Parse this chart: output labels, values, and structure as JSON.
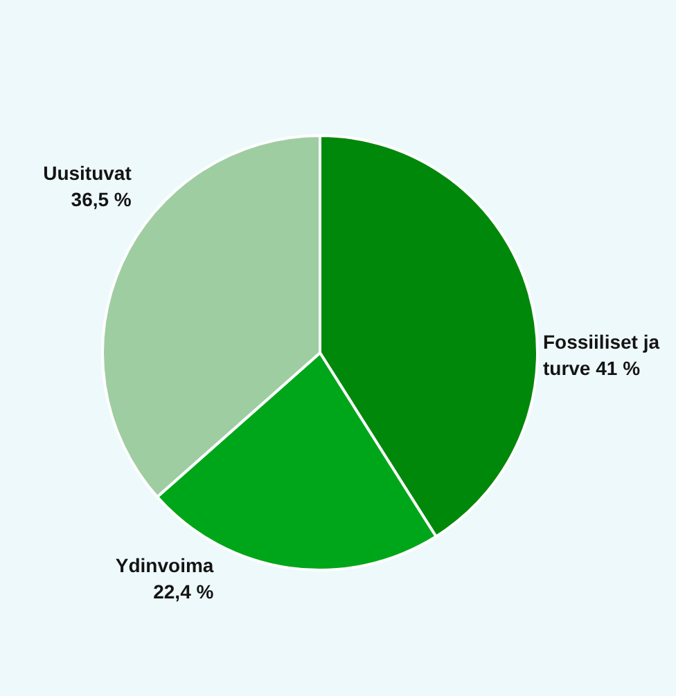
{
  "chart_data": {
    "type": "pie",
    "categories": [
      "Fossiiliset ja turve",
      "Ydinvoima",
      "Uusituvat"
    ],
    "values": [
      41,
      22.4,
      36.5
    ],
    "colors": [
      "#00880a",
      "#00a61a",
      "#9ecda2"
    ],
    "value_labels": [
      "41 %",
      "22,4 %",
      "36,5 %"
    ]
  }
}
